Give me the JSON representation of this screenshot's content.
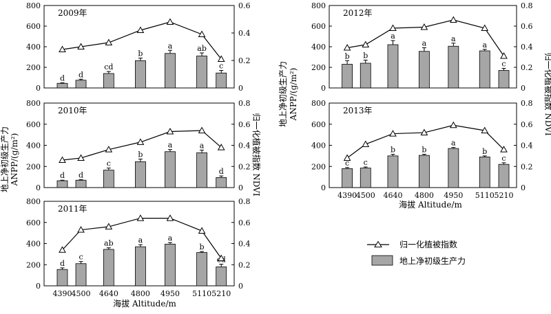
{
  "figure": {
    "left_ylabel_line1": "地上净初级生产力",
    "left_ylabel_line2": "ANPP/(g/m²)",
    "right_ylabel": "归一化植被指数 NDVI",
    "xlabel": "海拔 Altitude/m",
    "legend": {
      "ndvi_label": "归一化植被指数",
      "anpp_label": "地上净初级生产力"
    }
  },
  "chart_data": [
    {
      "type": "bar",
      "title": "2009年",
      "categories": [
        "4390",
        "4500",
        "4640",
        "4800",
        "4950",
        "5110",
        "5210"
      ],
      "series": [
        {
          "name": "地上净初级生产力",
          "values": [
            45,
            75,
            140,
            265,
            335,
            310,
            145
          ],
          "errors": [
            5,
            10,
            20,
            25,
            30,
            30,
            25
          ],
          "letters": [
            "d",
            "d",
            "cd",
            "b",
            "a",
            "ab",
            "c"
          ]
        },
        {
          "name": "归一化植被指数",
          "type": "line",
          "values": [
            0.28,
            0.3,
            0.33,
            0.42,
            0.48,
            0.39,
            0.21
          ]
        }
      ],
      "ylim": [
        0,
        800
      ],
      "y2lim": [
        0,
        0.6
      ],
      "yticks": [
        0,
        200,
        400,
        600,
        800
      ],
      "y2ticks": [
        0,
        0.2,
        0.4,
        0.6
      ],
      "show_xticks": false
    },
    {
      "type": "bar",
      "title": "2010年",
      "categories": [
        "4390",
        "4500",
        "4640",
        "4800",
        "4950",
        "5110",
        "5210"
      ],
      "series": [
        {
          "name": "地上净初级生产力",
          "values": [
            65,
            70,
            165,
            245,
            340,
            330,
            95
          ],
          "errors": [
            5,
            5,
            20,
            25,
            20,
            25,
            15
          ],
          "letters": [
            "d",
            "d",
            "c",
            "b",
            "a",
            "a",
            "d"
          ]
        },
        {
          "name": "归一化植被指数",
          "type": "line",
          "values": [
            0.26,
            0.28,
            0.36,
            0.43,
            0.53,
            0.54,
            0.38
          ]
        }
      ],
      "ylim": [
        0,
        800
      ],
      "y2lim": [
        0,
        0.8
      ],
      "yticks": [
        0,
        200,
        400,
        600,
        800
      ],
      "y2ticks": [
        0,
        0.2,
        0.4,
        0.6,
        0.8
      ],
      "show_xticks": false
    },
    {
      "type": "bar",
      "title": "2011年",
      "categories": [
        "4390",
        "4500",
        "4640",
        "4800",
        "4950",
        "5110",
        "5210"
      ],
      "series": [
        {
          "name": "地上净初级生产力",
          "values": [
            155,
            210,
            345,
            370,
            395,
            315,
            180
          ],
          "errors": [
            15,
            20,
            15,
            20,
            15,
            10,
            25
          ],
          "letters": [
            "d",
            "c",
            "ab",
            "a",
            "a",
            "b",
            "cd"
          ]
        },
        {
          "name": "归一化植被指数",
          "type": "line",
          "values": [
            0.34,
            0.53,
            0.56,
            0.64,
            0.64,
            0.52,
            0.26
          ]
        }
      ],
      "ylim": [
        0,
        800
      ],
      "y2lim": [
        0,
        0.8
      ],
      "yticks": [
        0,
        200,
        400,
        600,
        800
      ],
      "y2ticks": [
        0,
        0.2,
        0.4,
        0.6,
        0.8
      ],
      "show_xticks": true
    },
    {
      "type": "bar",
      "title": "2012年",
      "categories": [
        "4390",
        "4500",
        "4640",
        "4800",
        "4950",
        "5110",
        "5210"
      ],
      "series": [
        {
          "name": "地上净初级生产力",
          "values": [
            230,
            240,
            420,
            355,
            405,
            360,
            170
          ],
          "errors": [
            35,
            30,
            40,
            35,
            30,
            15,
            20
          ],
          "letters": [
            "b",
            "b",
            "a",
            "a",
            "a",
            "a",
            "c"
          ]
        },
        {
          "name": "归一化植被指数",
          "type": "line",
          "values": [
            0.39,
            0.42,
            0.58,
            0.59,
            0.66,
            0.58,
            0.31
          ]
        }
      ],
      "ylim": [
        0,
        800
      ],
      "y2lim": [
        0,
        0.8
      ],
      "yticks": [
        0,
        200,
        400,
        600,
        800
      ],
      "y2ticks": [
        0,
        0.2,
        0.4,
        0.6,
        0.8
      ],
      "show_xticks": false
    },
    {
      "type": "bar",
      "title": "2013年",
      "categories": [
        "4390",
        "4500",
        "4640",
        "4800",
        "4950",
        "5110",
        "5210"
      ],
      "series": [
        {
          "name": "地上净初级生产力",
          "values": [
            180,
            185,
            300,
            305,
            370,
            290,
            220
          ],
          "errors": [
            10,
            10,
            15,
            10,
            10,
            10,
            15
          ],
          "letters": [
            "c",
            "c",
            "b",
            "b",
            "a",
            "b",
            "c"
          ]
        },
        {
          "name": "归一化植被指数",
          "type": "line",
          "values": [
            0.28,
            0.41,
            0.51,
            0.52,
            0.59,
            0.54,
            0.36
          ]
        }
      ],
      "ylim": [
        0,
        800
      ],
      "y2lim": [
        0,
        0.8
      ],
      "yticks": [
        0,
        200,
        400,
        600,
        800
      ],
      "y2ticks": [
        0,
        0.2,
        0.4,
        0.6,
        0.8
      ],
      "show_xticks": true
    }
  ]
}
